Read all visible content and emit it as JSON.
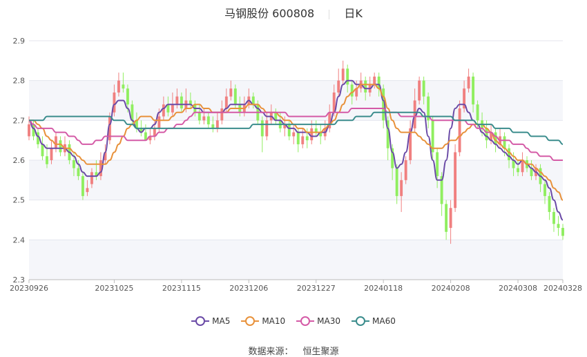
{
  "header": {
    "title": "马钢股份 600808",
    "period": "日K"
  },
  "source": {
    "label": "数据来源：",
    "name": "恒生聚源"
  },
  "colors": {
    "up": "#f08080",
    "down": "#90ee60"
  },
  "chart_data": {
    "type": "candlestick",
    "ylim": [
      2.3,
      2.9
    ],
    "yticks": [
      "2.3",
      "2.4",
      "2.5",
      "2.6",
      "2.7",
      "2.8",
      "2.9"
    ],
    "xticks": [
      {
        "label": "20230926",
        "index": 0
      },
      {
        "label": "20231025",
        "index": 19
      },
      {
        "label": "20231115",
        "index": 34
      },
      {
        "label": "20231206",
        "index": 49
      },
      {
        "label": "20231227",
        "index": 64
      },
      {
        "label": "20240118",
        "index": 79
      },
      {
        "label": "20240208",
        "index": 94
      },
      {
        "label": "20240308",
        "index": 109
      },
      {
        "label": "20240328",
        "index": 119
      }
    ],
    "candles": [
      [
        2.66,
        2.69,
        2.71,
        2.65
      ],
      [
        2.69,
        2.66,
        2.7,
        2.65
      ],
      [
        2.67,
        2.64,
        2.68,
        2.63
      ],
      [
        2.64,
        2.61,
        2.66,
        2.6
      ],
      [
        2.61,
        2.59,
        2.64,
        2.58
      ],
      [
        2.6,
        2.63,
        2.65,
        2.59
      ],
      [
        2.63,
        2.66,
        2.67,
        2.62
      ],
      [
        2.65,
        2.62,
        2.66,
        2.61
      ],
      [
        2.62,
        2.64,
        2.66,
        2.61
      ],
      [
        2.64,
        2.6,
        2.65,
        2.59
      ],
      [
        2.6,
        2.58,
        2.62,
        2.56
      ],
      [
        2.58,
        2.56,
        2.6,
        2.55
      ],
      [
        2.56,
        2.51,
        2.57,
        2.5
      ],
      [
        2.52,
        2.53,
        2.55,
        2.51
      ],
      [
        2.54,
        2.57,
        2.58,
        2.53
      ],
      [
        2.57,
        2.56,
        2.6,
        2.55
      ],
      [
        2.56,
        2.6,
        2.62,
        2.55
      ],
      [
        2.6,
        2.62,
        2.64,
        2.59
      ],
      [
        2.65,
        2.71,
        2.72,
        2.64
      ],
      [
        2.72,
        2.77,
        2.79,
        2.71
      ],
      [
        2.77,
        2.8,
        2.82,
        2.76
      ],
      [
        2.79,
        2.78,
        2.82,
        2.77
      ],
      [
        2.78,
        2.74,
        2.79,
        2.72
      ],
      [
        2.74,
        2.7,
        2.75,
        2.69
      ],
      [
        2.7,
        2.68,
        2.72,
        2.67
      ],
      [
        2.68,
        2.67,
        2.7,
        2.66
      ],
      [
        2.67,
        2.65,
        2.69,
        2.65
      ],
      [
        2.65,
        2.66,
        2.68,
        2.64
      ],
      [
        2.66,
        2.68,
        2.7,
        2.65
      ],
      [
        2.68,
        2.71,
        2.73,
        2.67
      ],
      [
        2.71,
        2.74,
        2.76,
        2.7
      ],
      [
        2.74,
        2.72,
        2.76,
        2.71
      ],
      [
        2.72,
        2.74,
        2.77,
        2.71
      ],
      [
        2.74,
        2.76,
        2.78,
        2.73
      ],
      [
        2.76,
        2.73,
        2.77,
        2.72
      ],
      [
        2.73,
        2.75,
        2.78,
        2.72
      ],
      [
        2.75,
        2.74,
        2.77,
        2.73
      ],
      [
        2.74,
        2.72,
        2.75,
        2.71
      ],
      [
        2.72,
        2.7,
        2.74,
        2.69
      ],
      [
        2.7,
        2.71,
        2.73,
        2.69
      ],
      [
        2.71,
        2.69,
        2.72,
        2.68
      ],
      [
        2.69,
        2.68,
        2.71,
        2.67
      ],
      [
        2.68,
        2.7,
        2.72,
        2.67
      ],
      [
        2.7,
        2.73,
        2.75,
        2.69
      ],
      [
        2.73,
        2.76,
        2.78,
        2.72
      ],
      [
        2.76,
        2.78,
        2.8,
        2.75
      ],
      [
        2.78,
        2.74,
        2.79,
        2.73
      ],
      [
        2.74,
        2.72,
        2.76,
        2.71
      ],
      [
        2.72,
        2.74,
        2.76,
        2.71
      ],
      [
        2.74,
        2.76,
        2.78,
        2.73
      ],
      [
        2.76,
        2.74,
        2.77,
        2.73
      ],
      [
        2.74,
        2.7,
        2.75,
        2.69
      ],
      [
        2.7,
        2.66,
        2.71,
        2.62
      ],
      [
        2.66,
        2.7,
        2.72,
        2.65
      ],
      [
        2.7,
        2.72,
        2.74,
        2.69
      ],
      [
        2.72,
        2.7,
        2.73,
        2.69
      ],
      [
        2.7,
        2.68,
        2.72,
        2.67
      ],
      [
        2.68,
        2.69,
        2.71,
        2.66
      ],
      [
        2.69,
        2.66,
        2.7,
        2.65
      ],
      [
        2.66,
        2.67,
        2.69,
        2.64
      ],
      [
        2.67,
        2.64,
        2.68,
        2.62
      ],
      [
        2.64,
        2.66,
        2.68,
        2.63
      ],
      [
        2.66,
        2.65,
        2.68,
        2.63
      ],
      [
        2.65,
        2.68,
        2.7,
        2.64
      ],
      [
        2.68,
        2.67,
        2.7,
        2.66
      ],
      [
        2.67,
        2.66,
        2.69,
        2.64
      ],
      [
        2.66,
        2.68,
        2.7,
        2.65
      ],
      [
        2.68,
        2.72,
        2.74,
        2.67
      ],
      [
        2.72,
        2.77,
        2.79,
        2.71
      ],
      [
        2.77,
        2.8,
        2.83,
        2.76
      ],
      [
        2.8,
        2.83,
        2.85,
        2.79
      ],
      [
        2.83,
        2.79,
        2.84,
        2.77
      ],
      [
        2.79,
        2.76,
        2.8,
        2.74
      ],
      [
        2.76,
        2.78,
        2.8,
        2.75
      ],
      [
        2.78,
        2.8,
        2.82,
        2.77
      ],
      [
        2.8,
        2.77,
        2.81,
        2.75
      ],
      [
        2.77,
        2.79,
        2.81,
        2.76
      ],
      [
        2.79,
        2.81,
        2.82,
        2.78
      ],
      [
        2.81,
        2.78,
        2.82,
        2.76
      ],
      [
        2.78,
        2.7,
        2.79,
        2.68
      ],
      [
        2.7,
        2.63,
        2.71,
        2.6
      ],
      [
        2.63,
        2.58,
        2.64,
        2.55
      ],
      [
        2.58,
        2.51,
        2.59,
        2.49
      ],
      [
        2.51,
        2.55,
        2.57,
        2.47
      ],
      [
        2.55,
        2.6,
        2.61,
        2.54
      ],
      [
        2.6,
        2.68,
        2.7,
        2.59
      ],
      [
        2.68,
        2.75,
        2.78,
        2.67
      ],
      [
        2.75,
        2.8,
        2.81,
        2.74
      ],
      [
        2.8,
        2.76,
        2.81,
        2.74
      ],
      [
        2.76,
        2.7,
        2.77,
        2.68
      ],
      [
        2.7,
        2.62,
        2.71,
        2.6
      ],
      [
        2.62,
        2.56,
        2.63,
        2.53
      ],
      [
        2.56,
        2.49,
        2.57,
        2.46
      ],
      [
        2.49,
        2.42,
        2.5,
        2.4
      ],
      [
        2.43,
        2.48,
        2.5,
        2.39
      ],
      [
        2.48,
        2.62,
        2.64,
        2.47
      ],
      [
        2.62,
        2.73,
        2.75,
        2.61
      ],
      [
        2.73,
        2.78,
        2.8,
        2.72
      ],
      [
        2.78,
        2.81,
        2.83,
        2.77
      ],
      [
        2.81,
        2.74,
        2.82,
        2.72
      ],
      [
        2.74,
        2.7,
        2.75,
        2.68
      ],
      [
        2.7,
        2.68,
        2.72,
        2.66
      ],
      [
        2.68,
        2.65,
        2.7,
        2.63
      ],
      [
        2.65,
        2.67,
        2.69,
        2.64
      ],
      [
        2.67,
        2.64,
        2.68,
        2.62
      ],
      [
        2.64,
        2.66,
        2.68,
        2.63
      ],
      [
        2.66,
        2.63,
        2.67,
        2.61
      ],
      [
        2.63,
        2.6,
        2.64,
        2.58
      ],
      [
        2.6,
        2.58,
        2.62,
        2.56
      ],
      [
        2.58,
        2.57,
        2.6,
        2.56
      ],
      [
        2.57,
        2.6,
        2.62,
        2.56
      ],
      [
        2.6,
        2.58,
        2.61,
        2.57
      ],
      [
        2.58,
        2.56,
        2.6,
        2.55
      ],
      [
        2.56,
        2.58,
        2.59,
        2.55
      ],
      [
        2.58,
        2.54,
        2.59,
        2.52
      ],
      [
        2.54,
        2.51,
        2.55,
        2.49
      ],
      [
        2.51,
        2.47,
        2.52,
        2.45
      ],
      [
        2.47,
        2.44,
        2.48,
        2.42
      ],
      [
        2.44,
        2.43,
        2.46,
        2.41
      ],
      [
        2.43,
        2.41,
        2.44,
        2.4
      ]
    ],
    "series": [
      {
        "name": "MA5",
        "color": "#6a4aa6",
        "values": [
          2.7,
          2.68,
          2.66,
          2.64,
          2.63,
          2.63,
          2.63,
          2.63,
          2.63,
          2.62,
          2.61,
          2.59,
          2.57,
          2.56,
          2.56,
          2.56,
          2.57,
          2.62,
          2.69,
          2.74,
          2.75,
          2.75,
          2.73,
          2.7,
          2.68,
          2.67,
          2.68,
          2.68,
          2.69,
          2.72,
          2.73,
          2.74,
          2.74,
          2.74,
          2.74,
          2.74,
          2.74,
          2.73,
          2.73,
          2.72,
          2.72,
          2.72,
          2.72,
          2.72,
          2.73,
          2.74,
          2.74,
          2.74,
          2.74,
          2.75,
          2.74,
          2.73,
          2.72,
          2.71,
          2.71,
          2.7,
          2.7,
          2.69,
          2.68,
          2.68,
          2.67,
          2.67,
          2.67,
          2.66,
          2.66,
          2.67,
          2.67,
          2.69,
          2.72,
          2.76,
          2.79,
          2.8,
          2.8,
          2.79,
          2.79,
          2.78,
          2.78,
          2.79,
          2.79,
          2.75,
          2.68,
          2.62,
          2.58,
          2.59,
          2.62,
          2.67,
          2.71,
          2.73,
          2.72,
          2.66,
          2.6,
          2.55,
          2.55,
          2.6,
          2.68,
          2.73,
          2.74,
          2.74,
          2.72,
          2.7,
          2.69,
          2.67,
          2.66,
          2.65,
          2.64,
          2.63,
          2.62,
          2.61,
          2.6,
          2.59,
          2.6,
          2.59,
          2.58,
          2.57,
          2.56,
          2.55,
          2.53,
          2.5,
          2.47,
          2.45
        ]
      },
      {
        "name": "MA10",
        "color": "#e8913a",
        "values": [
          2.7,
          2.7,
          2.69,
          2.68,
          2.66,
          2.65,
          2.64,
          2.64,
          2.63,
          2.63,
          2.62,
          2.61,
          2.6,
          2.59,
          2.59,
          2.59,
          2.59,
          2.59,
          2.6,
          2.62,
          2.64,
          2.66,
          2.68,
          2.69,
          2.7,
          2.71,
          2.71,
          2.71,
          2.7,
          2.7,
          2.7,
          2.7,
          2.71,
          2.72,
          2.72,
          2.73,
          2.73,
          2.74,
          2.74,
          2.73,
          2.73,
          2.72,
          2.72,
          2.72,
          2.72,
          2.73,
          2.73,
          2.73,
          2.73,
          2.74,
          2.74,
          2.74,
          2.73,
          2.72,
          2.72,
          2.72,
          2.71,
          2.7,
          2.7,
          2.69,
          2.68,
          2.68,
          2.67,
          2.67,
          2.67,
          2.67,
          2.68,
          2.69,
          2.7,
          2.72,
          2.74,
          2.76,
          2.77,
          2.78,
          2.79,
          2.79,
          2.79,
          2.79,
          2.78,
          2.76,
          2.73,
          2.7,
          2.68,
          2.67,
          2.67,
          2.67,
          2.67,
          2.66,
          2.65,
          2.64,
          2.63,
          2.63,
          2.63,
          2.64,
          2.65,
          2.65,
          2.66,
          2.67,
          2.68,
          2.69,
          2.69,
          2.69,
          2.68,
          2.67,
          2.65,
          2.64,
          2.63,
          2.62,
          2.61,
          2.6,
          2.6,
          2.59,
          2.59,
          2.58,
          2.57,
          2.56,
          2.55,
          2.53,
          2.52,
          2.5
        ]
      },
      {
        "name": "MA30",
        "color": "#d45aa6",
        "values": [
          2.7,
          2.69,
          2.68,
          2.68,
          2.68,
          2.68,
          2.67,
          2.67,
          2.67,
          2.66,
          2.66,
          2.65,
          2.64,
          2.64,
          2.64,
          2.65,
          2.65,
          2.66,
          2.66,
          2.66,
          2.66,
          2.66,
          2.65,
          2.65,
          2.65,
          2.65,
          2.65,
          2.66,
          2.66,
          2.67,
          2.67,
          2.68,
          2.68,
          2.69,
          2.69,
          2.7,
          2.71,
          2.72,
          2.72,
          2.72,
          2.72,
          2.72,
          2.72,
          2.72,
          2.72,
          2.72,
          2.72,
          2.72,
          2.72,
          2.72,
          2.72,
          2.72,
          2.72,
          2.72,
          2.72,
          2.72,
          2.72,
          2.72,
          2.71,
          2.71,
          2.71,
          2.71,
          2.71,
          2.71,
          2.71,
          2.71,
          2.71,
          2.72,
          2.72,
          2.72,
          2.72,
          2.72,
          2.73,
          2.73,
          2.73,
          2.73,
          2.73,
          2.73,
          2.73,
          2.73,
          2.72,
          2.72,
          2.72,
          2.71,
          2.71,
          2.71,
          2.71,
          2.71,
          2.71,
          2.71,
          2.7,
          2.7,
          2.7,
          2.7,
          2.7,
          2.7,
          2.7,
          2.7,
          2.69,
          2.69,
          2.68,
          2.68,
          2.67,
          2.67,
          2.66,
          2.65,
          2.65,
          2.65,
          2.64,
          2.64,
          2.64,
          2.63,
          2.62,
          2.62,
          2.61,
          2.61,
          2.61,
          2.6,
          2.6,
          2.6
        ]
      },
      {
        "name": "MA60",
        "color": "#3a8c8c",
        "values": [
          2.7,
          2.7,
          2.7,
          2.7,
          2.71,
          2.71,
          2.71,
          2.71,
          2.71,
          2.71,
          2.71,
          2.71,
          2.71,
          2.71,
          2.71,
          2.71,
          2.71,
          2.71,
          2.71,
          2.7,
          2.7,
          2.7,
          2.69,
          2.69,
          2.68,
          2.68,
          2.68,
          2.68,
          2.68,
          2.68,
          2.68,
          2.68,
          2.68,
          2.68,
          2.68,
          2.68,
          2.68,
          2.68,
          2.68,
          2.68,
          2.68,
          2.68,
          2.68,
          2.68,
          2.68,
          2.68,
          2.68,
          2.68,
          2.68,
          2.68,
          2.69,
          2.69,
          2.69,
          2.69,
          2.69,
          2.69,
          2.69,
          2.69,
          2.69,
          2.69,
          2.69,
          2.69,
          2.69,
          2.69,
          2.69,
          2.69,
          2.69,
          2.69,
          2.69,
          2.7,
          2.7,
          2.7,
          2.7,
          2.71,
          2.71,
          2.71,
          2.71,
          2.72,
          2.72,
          2.72,
          2.72,
          2.72,
          2.72,
          2.72,
          2.72,
          2.72,
          2.72,
          2.72,
          2.71,
          2.71,
          2.71,
          2.71,
          2.71,
          2.71,
          2.71,
          2.7,
          2.7,
          2.7,
          2.7,
          2.7,
          2.69,
          2.69,
          2.69,
          2.69,
          2.68,
          2.68,
          2.68,
          2.68,
          2.67,
          2.67,
          2.67,
          2.67,
          2.66,
          2.66,
          2.66,
          2.66,
          2.65,
          2.65,
          2.65,
          2.64
        ]
      }
    ],
    "legend_position": "bottom-center"
  }
}
